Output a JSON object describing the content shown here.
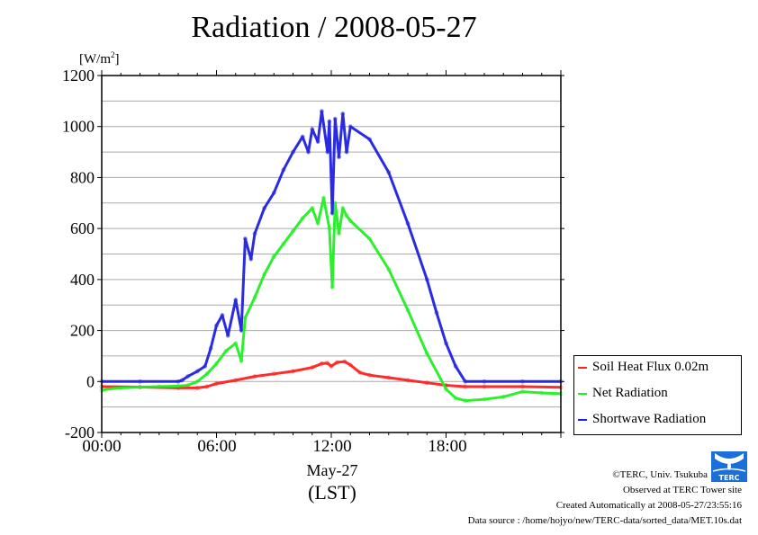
{
  "title": "Radiation / 2008-05-27",
  "unit_label": "[W/m",
  "unit_sup": "2",
  "unit_close": "]",
  "legend": [
    {
      "label": "Soil Heat Flux 0.02m",
      "color": "#ff2020"
    },
    {
      "label": "Net Radiation",
      "color": "#22ee22"
    },
    {
      "label": "Shortwave Radiation",
      "color": "#2020e0"
    }
  ],
  "xaxis": {
    "ticks": [
      "00:00",
      "06:00",
      "12:00",
      "18:00"
    ],
    "date_label": "May-27",
    "tz_label": "(LST)"
  },
  "footer": {
    "copyright": "©TERC, Univ. Tsukuba",
    "observed": "Observed at TERC Tower site",
    "created": "Created Automatically at 2008-05-27/23:55:16",
    "source": "Data source : /home/hojyo/new/TERC-data/sorted_data/MET.10s.dat"
  },
  "logo_text": "TERC",
  "chart_data": {
    "type": "line",
    "title": "Radiation / 2008-05-27",
    "xlabel": "May-27 (LST)",
    "ylabel": "[W/m2]",
    "xlim_hours": [
      0,
      24
    ],
    "ylim": [
      -200,
      1200
    ],
    "yticks": [
      -200,
      0,
      200,
      400,
      600,
      800,
      1000,
      1200
    ],
    "ygrid_step": 100,
    "xtick_labels": [
      "00:00",
      "06:00",
      "12:00",
      "18:00"
    ],
    "grid": true,
    "legend_position": "right",
    "series": [
      {
        "name": "Soil Heat Flux 0.02m",
        "color": "#ff2020",
        "x": [
          0,
          2,
          4,
          5,
          5.5,
          6,
          7,
          8,
          9,
          10,
          11,
          11.5,
          11.8,
          12,
          12.3,
          12.7,
          13,
          13.5,
          14,
          15,
          16,
          17,
          18,
          19,
          20,
          22,
          24
        ],
        "y": [
          -20,
          -22,
          -25,
          -25,
          -20,
          -8,
          5,
          20,
          30,
          40,
          55,
          70,
          72,
          60,
          75,
          78,
          65,
          35,
          25,
          15,
          5,
          -5,
          -15,
          -20,
          -20,
          -20,
          -23
        ]
      },
      {
        "name": "Net Radiation",
        "color": "#22ee22",
        "x": [
          0,
          0.5,
          1,
          2,
          3,
          4,
          4.5,
          5,
          5.5,
          6,
          6.5,
          7,
          7.3,
          7.5,
          8,
          8.5,
          9,
          9.5,
          10,
          10.5,
          11,
          11.3,
          11.6,
          11.9,
          12.05,
          12.2,
          12.4,
          12.6,
          12.8,
          13,
          14,
          15,
          16,
          17,
          18,
          18.5,
          19,
          20,
          21,
          22,
          23,
          24
        ],
        "y": [
          -35,
          -28,
          -25,
          -22,
          -20,
          -18,
          -15,
          0,
          30,
          70,
          120,
          150,
          80,
          250,
          330,
          420,
          490,
          540,
          590,
          640,
          680,
          620,
          720,
          600,
          370,
          700,
          580,
          680,
          650,
          630,
          560,
          440,
          280,
          110,
          -30,
          -65,
          -75,
          -70,
          -60,
          -40,
          -45,
          -48
        ]
      },
      {
        "name": "Shortwave Radiation",
        "color": "#2020e0",
        "x": [
          0,
          2,
          4,
          4.2,
          4.5,
          5,
          5.4,
          5.7,
          6,
          6.3,
          6.6,
          7,
          7.3,
          7.5,
          7.8,
          8,
          8.5,
          9,
          9.5,
          10,
          10.5,
          10.8,
          11,
          11.3,
          11.5,
          11.8,
          11.9,
          12.05,
          12.2,
          12.4,
          12.6,
          12.8,
          13,
          14,
          15,
          16,
          17,
          17.5,
          18,
          18.5,
          19,
          20,
          22,
          24
        ],
        "y": [
          0,
          0,
          0,
          5,
          20,
          40,
          60,
          130,
          220,
          260,
          180,
          320,
          200,
          560,
          480,
          580,
          680,
          740,
          830,
          900,
          960,
          900,
          990,
          940,
          1060,
          900,
          1020,
          660,
          1030,
          880,
          1050,
          900,
          1000,
          950,
          820,
          620,
          400,
          270,
          150,
          60,
          0,
          0,
          0,
          0
        ]
      }
    ]
  }
}
